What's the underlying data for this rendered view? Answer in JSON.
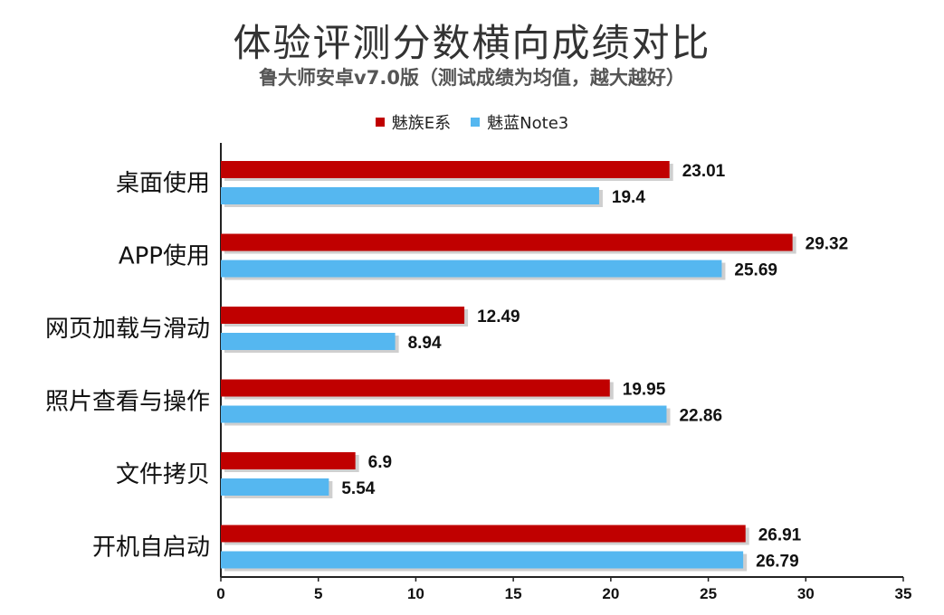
{
  "chart_data": {
    "type": "bar",
    "orientation": "horizontal",
    "title": "体验评测分数横向成绩对比",
    "subtitle": "鲁大师安卓v7.0版（测试成绩为均值，越大越好）",
    "categories": [
      "桌面使用",
      "APP使用",
      "网页加载与滑动",
      "照片查看与操作",
      "文件拷贝",
      "开机自启动"
    ],
    "series": [
      {
        "name": "魅族E系",
        "color": "#c00000",
        "values": [
          23.01,
          29.32,
          12.49,
          19.95,
          6.9,
          26.91
        ],
        "labels": [
          "23.01",
          "29.32",
          "12.49",
          "19.95",
          "6.9",
          "26.91"
        ]
      },
      {
        "name": "魅蓝Note3",
        "color": "#55b7f0",
        "values": [
          19.4,
          25.69,
          8.94,
          22.86,
          5.54,
          26.79
        ],
        "labels": [
          "19.4",
          "25.69",
          "8.94",
          "22.86",
          "5.54",
          "26.79"
        ]
      }
    ],
    "xlim": [
      0,
      35
    ],
    "xticks": [
      "0",
      "5",
      "10",
      "15",
      "20",
      "25",
      "30",
      "35"
    ],
    "legend": "top-center",
    "grid": false
  }
}
